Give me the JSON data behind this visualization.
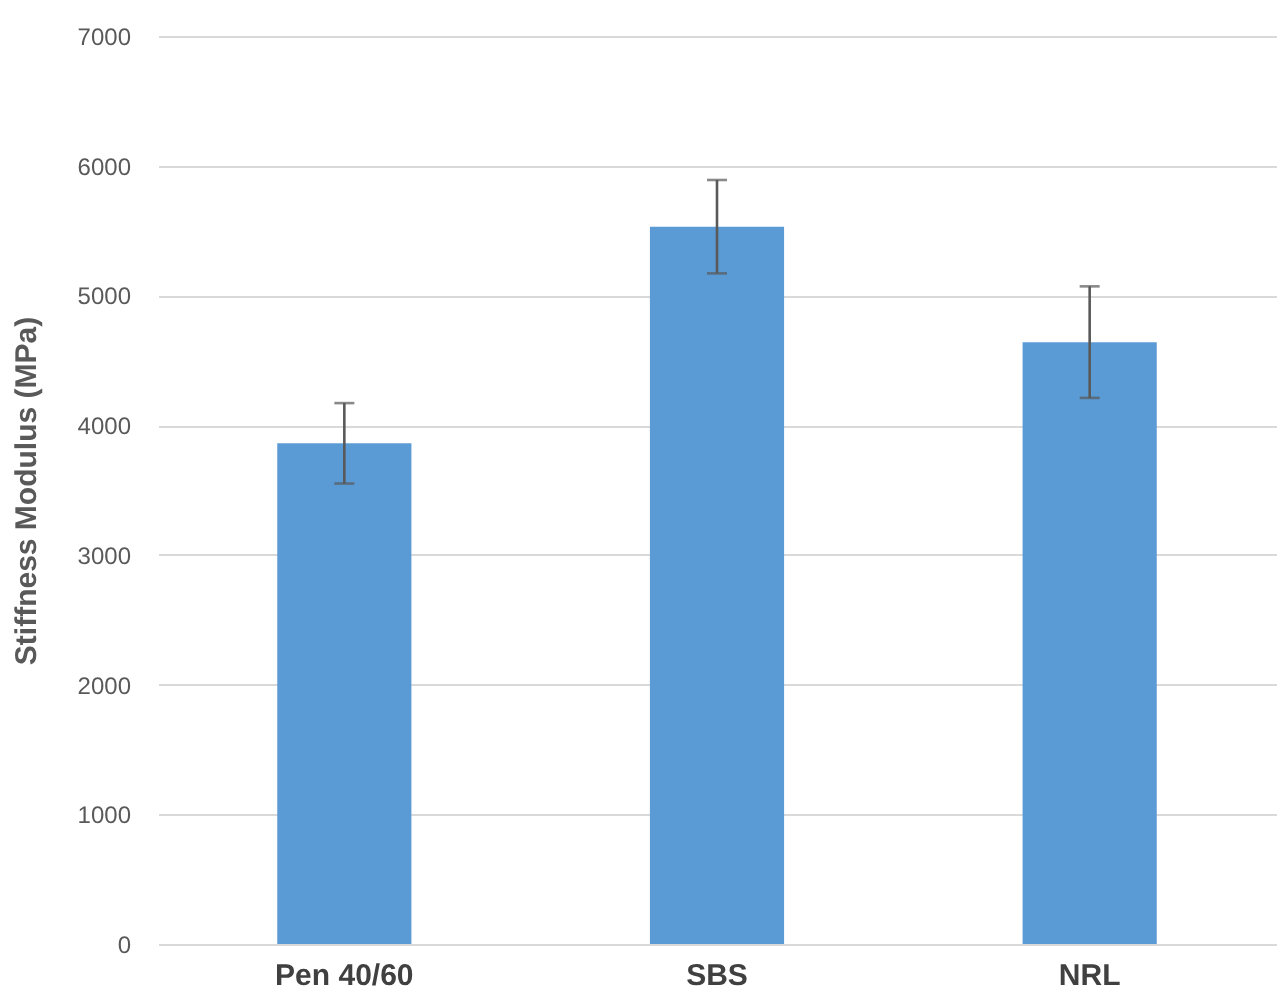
{
  "chart_data": {
    "type": "bar",
    "ylabel": "Stiffness Modulus (MPa)",
    "categories": [
      "Pen 40/60",
      "SBS",
      "NRL"
    ],
    "values": [
      3860,
      5530,
      4640
    ],
    "errors": [
      310,
      360,
      430
    ],
    "color": "#5b9bd5",
    "ylim": [
      0,
      7000
    ],
    "yticks": [
      0,
      1000,
      2000,
      3000,
      4000,
      5000,
      6000,
      7000
    ],
    "grid": "y"
  }
}
